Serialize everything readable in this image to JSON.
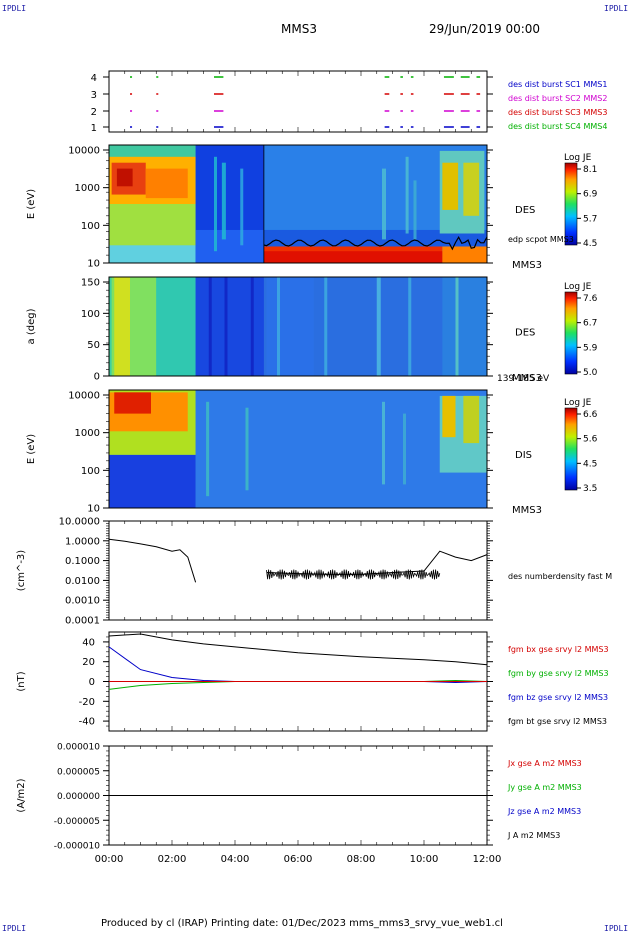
{
  "corners": {
    "tl": "IPDLI",
    "tr": "IPDLI",
    "bl": "IPDLI",
    "br": "IPDLI"
  },
  "header": {
    "spacecraft": "MMS3",
    "datetime": "29/Jun/2019 00:00"
  },
  "footer": {
    "text": "Produced by cl (IRAP)   Printing date: 01/Dec/2023   mms_mms3_srvy_vue_web1.cl"
  },
  "colors": {
    "red": "#d40000",
    "green": "#00b000",
    "blue": "#0000c8",
    "magenta": "#d000d0",
    "black": "#000000"
  },
  "chart_data": [
    {
      "type": "scatter",
      "ylabel": "",
      "y_ticks": [
        "1",
        "2",
        "3",
        "4"
      ],
      "legend": [
        {
          "label": "des dist burst SC1 MMS1",
          "color": "#0000c8"
        },
        {
          "label": "des dist burst SC2 MMS2",
          "color": "#d000d0"
        },
        {
          "label": "des dist burst SC3 MMS3",
          "color": "#d40000"
        },
        {
          "label": "des dist burst SC4 MMS4",
          "color": "#00b000"
        }
      ]
    },
    {
      "type": "heatmap",
      "ylabel": "E (eV)",
      "y_ticks": [
        "10",
        "100",
        "1000",
        "10000"
      ],
      "side_label": "DES",
      "overlay_label": "edp scpot MMS3",
      "spacecraft_label": "MMS3",
      "colorbar": {
        "title": "Log JE",
        "ticks": [
          "8.1",
          "6.9",
          "5.7",
          "4.5"
        ]
      }
    },
    {
      "type": "heatmap",
      "ylabel": "a (deg)",
      "y_ticks": [
        "0",
        "50",
        "100",
        "150"
      ],
      "side_label": "DES",
      "spacecraft_label": "MMS3",
      "energy_range": "139-185 eV",
      "colorbar": {
        "title": "Log JE",
        "ticks": [
          "7.6",
          "6.7",
          "5.9",
          "5.0"
        ]
      }
    },
    {
      "type": "heatmap",
      "ylabel": "E (eV)",
      "y_ticks": [
        "10",
        "100",
        "1000",
        "10000"
      ],
      "side_label": "DIS",
      "spacecraft_label": "MMS3",
      "colorbar": {
        "title": "Log JE",
        "ticks": [
          "6.6",
          "5.6",
          "4.5",
          "3.5"
        ]
      }
    },
    {
      "type": "line",
      "ylabel": "(cm^-3)",
      "y_ticks": [
        "10.0000",
        "1.0000",
        "0.1000",
        "0.0100",
        "0.0010",
        "0.0001"
      ],
      "legend": [
        {
          "label": "des numberdensity fast M",
          "color": "#000000"
        }
      ],
      "series": [
        {
          "name": "des numberdensity fast M",
          "x": [
            "00:00",
            "00:30",
            "01:00",
            "01:30",
            "02:00",
            "02:15",
            "02:30",
            "02:45",
            "05:00",
            "06:00",
            "07:00",
            "08:00",
            "09:00",
            "10:00",
            "10:30",
            "11:00",
            "11:30",
            "12:00"
          ],
          "y": [
            1.2,
            0.95,
            0.7,
            0.5,
            0.3,
            0.35,
            0.15,
            0.008,
            0.025,
            0.022,
            0.02,
            0.02,
            0.025,
            0.03,
            0.3,
            0.15,
            0.1,
            0.2
          ]
        }
      ]
    },
    {
      "type": "line",
      "ylabel": "(nT)",
      "y_ticks": [
        "40",
        "20",
        "0",
        "-20",
        "-40"
      ],
      "ylim": [
        -50,
        50
      ],
      "legend": [
        {
          "label": "fgm bx gse srvy l2 MMS3",
          "color": "#d40000"
        },
        {
          "label": "fgm by gse srvy l2 MMS3",
          "color": "#00b000"
        },
        {
          "label": "fgm bz gse srvy l2 MMS3",
          "color": "#0000c8"
        },
        {
          "label": "fgm bt gse srvy l2 MMS3",
          "color": "#000000"
        }
      ],
      "x": [
        "00:00",
        "01:00",
        "02:00",
        "03:00",
        "04:00",
        "06:00",
        "08:00",
        "10:00",
        "11:00",
        "12:00"
      ],
      "series": [
        {
          "name": "fgm bt gse srvy l2 MMS3",
          "values": [
            46,
            48,
            42,
            38,
            35,
            29,
            25,
            22,
            20,
            17
          ]
        },
        {
          "name": "fgm bz gse srvy l2 MMS3",
          "values": [
            35,
            12,
            4,
            1,
            0,
            0,
            0,
            0,
            -1,
            0
          ]
        },
        {
          "name": "fgm by gse srvy l2 MMS3",
          "values": [
            -8,
            -4,
            -2,
            -1,
            0,
            0,
            0,
            0,
            1,
            0
          ]
        },
        {
          "name": "fgm bx gse srvy l2 MMS3",
          "values": [
            0,
            0,
            0,
            0,
            0,
            0,
            0,
            0,
            0,
            0
          ]
        }
      ]
    },
    {
      "type": "line",
      "ylabel": "(A/m2)",
      "y_ticks": [
        "0.000010",
        "0.000005",
        "0.000000",
        "-0.000005",
        "-0.000010"
      ],
      "ylim": [
        -1e-05,
        1e-05
      ],
      "legend": [
        {
          "label": "Jx gse A m2 MMS3",
          "color": "#d40000"
        },
        {
          "label": "Jy gse A m2 MMS3",
          "color": "#00b000"
        },
        {
          "label": "Jz gse A m2 MMS3",
          "color": "#0000c8"
        },
        {
          "label": "J A m2 MMS3",
          "color": "#000000"
        }
      ],
      "series": [
        {
          "name": "J A m2 MMS3",
          "values": [
            0,
            0,
            0,
            0,
            0,
            0,
            0
          ]
        }
      ]
    }
  ],
  "x_ticks": [
    "00:00",
    "02:00",
    "04:00",
    "06:00",
    "08:00",
    "10:00",
    "12:00"
  ]
}
